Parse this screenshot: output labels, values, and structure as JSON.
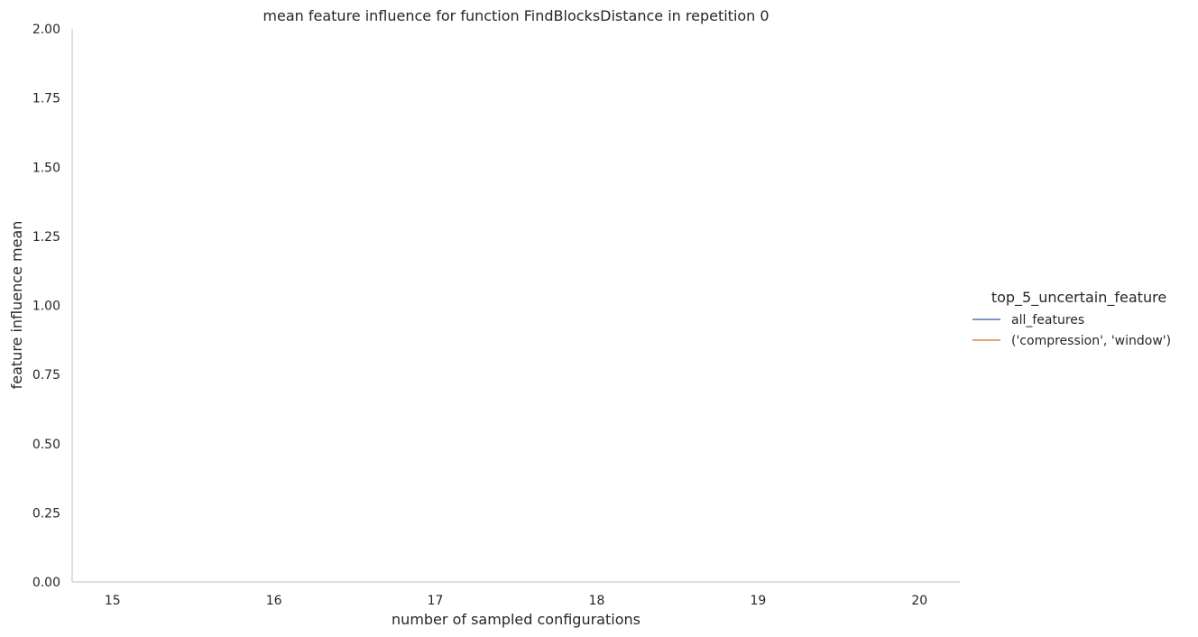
{
  "chart_data": {
    "type": "line",
    "title": "mean feature influence for function FindBlocksDistance in repetition 0",
    "xlabel": "number of sampled configurations",
    "ylabel": "feature influence mean",
    "xlim": [
      14.75,
      20.25
    ],
    "ylim": [
      0,
      2
    ],
    "x_ticks": [
      15,
      16,
      17,
      18,
      19,
      20
    ],
    "y_ticks": [
      0,
      0.25,
      0.5,
      0.75,
      1.0,
      1.25,
      1.5,
      1.75,
      2.0
    ],
    "x_tick_labels": [
      "15",
      "16",
      "17",
      "18",
      "19",
      "20"
    ],
    "y_tick_labels": [
      "0.00",
      "0.25",
      "0.50",
      "0.75",
      "1.00",
      "1.25",
      "1.50",
      "1.75",
      "2.00"
    ],
    "grid": false,
    "legend": {
      "title": "top_5_uncertain_feature",
      "placement": "right"
    },
    "series": [
      {
        "name": "all_features",
        "color": "#4c72b0",
        "x": [],
        "y": []
      },
      {
        "name": "('compression', 'window')",
        "color": "#dd8452",
        "x": [],
        "y": []
      }
    ]
  }
}
